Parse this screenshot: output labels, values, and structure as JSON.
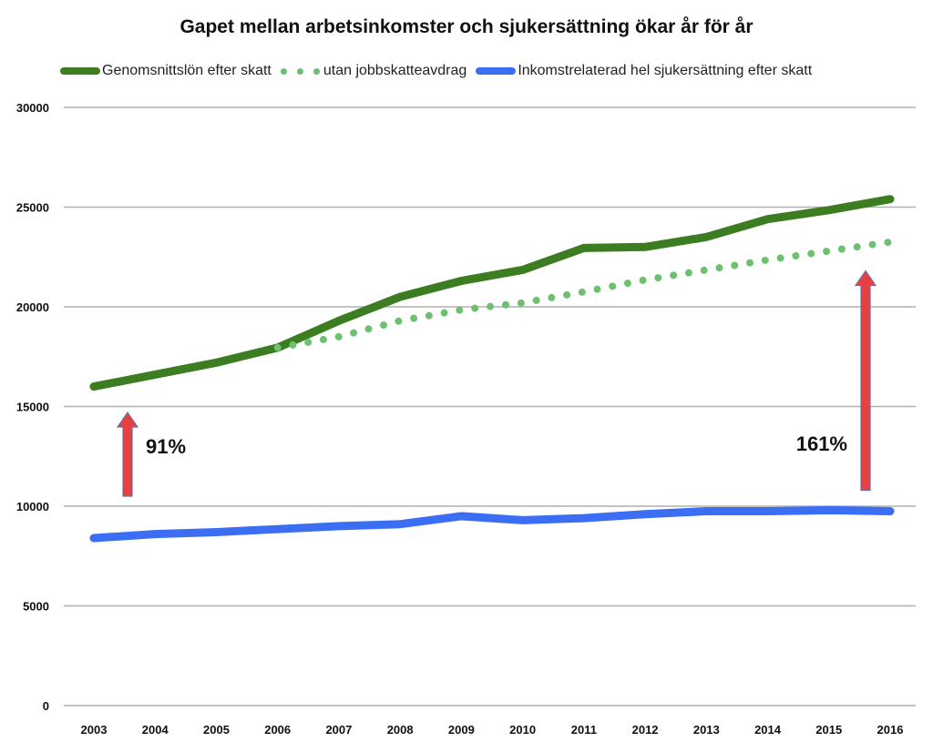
{
  "chart_data": {
    "type": "line",
    "title": "Gapet mellan arbetsinkomster och sjukersättning ökar år för år",
    "xlabel": "",
    "ylabel": "",
    "ylim": [
      0,
      30000
    ],
    "yticks": [
      "0",
      "5000",
      "10000",
      "15000",
      "20000",
      "25000",
      "30000"
    ],
    "grid": true,
    "legend_position": "top",
    "x": [
      "2003",
      "2004",
      "2005",
      "2006",
      "2007",
      "2008",
      "2009",
      "2010",
      "2011",
      "2012",
      "2013",
      "2014",
      "2015",
      "2016"
    ],
    "series": [
      {
        "name": "Genomsnittslön efter skatt",
        "color": "#3c7d22",
        "style": "solid",
        "values": [
          16000,
          16600,
          17200,
          17950,
          19300,
          20500,
          21300,
          21850,
          22950,
          23000,
          23500,
          24400,
          24850,
          25400
        ]
      },
      {
        "name": "utan jobbskatteavdrag",
        "color": "#6cc070",
        "style": "dotted",
        "values": [
          null,
          null,
          null,
          17950,
          18500,
          19300,
          19850,
          20200,
          20750,
          21350,
          21850,
          22350,
          22800,
          23250
        ]
      },
      {
        "name": "Inkomstrelaterad hel sjukersättning efter skatt",
        "color": "#3b6ef2",
        "style": "solid",
        "values": [
          8400,
          8600,
          8700,
          8850,
          9000,
          9100,
          9500,
          9300,
          9400,
          9600,
          9750,
          9750,
          9800,
          9750
        ]
      }
    ],
    "annotations": [
      {
        "text": "91%",
        "year": "2003",
        "arrow_from": 10500,
        "arrow_to": 14700,
        "color": "#e84040"
      },
      {
        "text": "161%",
        "year": "2016",
        "arrow_from": 10800,
        "arrow_to": 21800,
        "color": "#e84040"
      }
    ]
  }
}
